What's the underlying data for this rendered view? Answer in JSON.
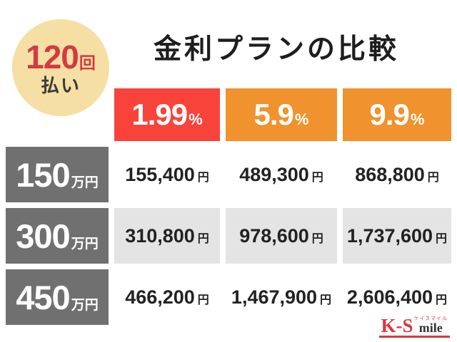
{
  "badge": {
    "count": "120",
    "count_unit": "回",
    "label": "払い"
  },
  "title": "金利プランの比較",
  "table": {
    "rate_headers": [
      {
        "value": "1.99",
        "unit": "%"
      },
      {
        "value": "5.9",
        "unit": "%"
      },
      {
        "value": "9.9",
        "unit": "%"
      }
    ],
    "rows": [
      {
        "amount": "150",
        "amount_unit": "万円",
        "cells": [
          {
            "value": "155,400",
            "unit": "円"
          },
          {
            "value": "489,300",
            "unit": "円"
          },
          {
            "value": "868,800",
            "unit": "円"
          }
        ]
      },
      {
        "amount": "300",
        "amount_unit": "万円",
        "cells": [
          {
            "value": "310,800",
            "unit": "円"
          },
          {
            "value": "978,600",
            "unit": "円"
          },
          {
            "value": "1,737,600",
            "unit": "円"
          }
        ]
      },
      {
        "amount": "450",
        "amount_unit": "万円",
        "cells": [
          {
            "value": "466,200",
            "unit": "円"
          },
          {
            "value": "1,467,900",
            "unit": "円"
          },
          {
            "value": "2,606,400",
            "unit": "円"
          }
        ]
      }
    ]
  },
  "logo": {
    "prefix": "K-S",
    "kana": "ケイスマイル",
    "suffix": "mile"
  },
  "colors": {
    "accent_red": "#f8433b",
    "accent_orange": "#f0922d",
    "badge_bg": "#f6dfa4",
    "badge_text": "#d23b41",
    "row_header_bg": "#707070",
    "alt_cell_bg": "#e4e4e4",
    "logo_red": "#d8383f"
  },
  "chart_data": {
    "type": "table",
    "title": "金利プランの比較",
    "note": "120回払い",
    "columns": [
      "1.99%",
      "5.9%",
      "9.9%"
    ],
    "row_labels": [
      "150万円",
      "300万円",
      "450万円"
    ],
    "values": [
      [
        "155,400円",
        "489,300円",
        "868,800円"
      ],
      [
        "310,800円",
        "978,600円",
        "1,737,600円"
      ],
      [
        "466,200円",
        "1,467,900円",
        "2,606,400円"
      ]
    ]
  }
}
